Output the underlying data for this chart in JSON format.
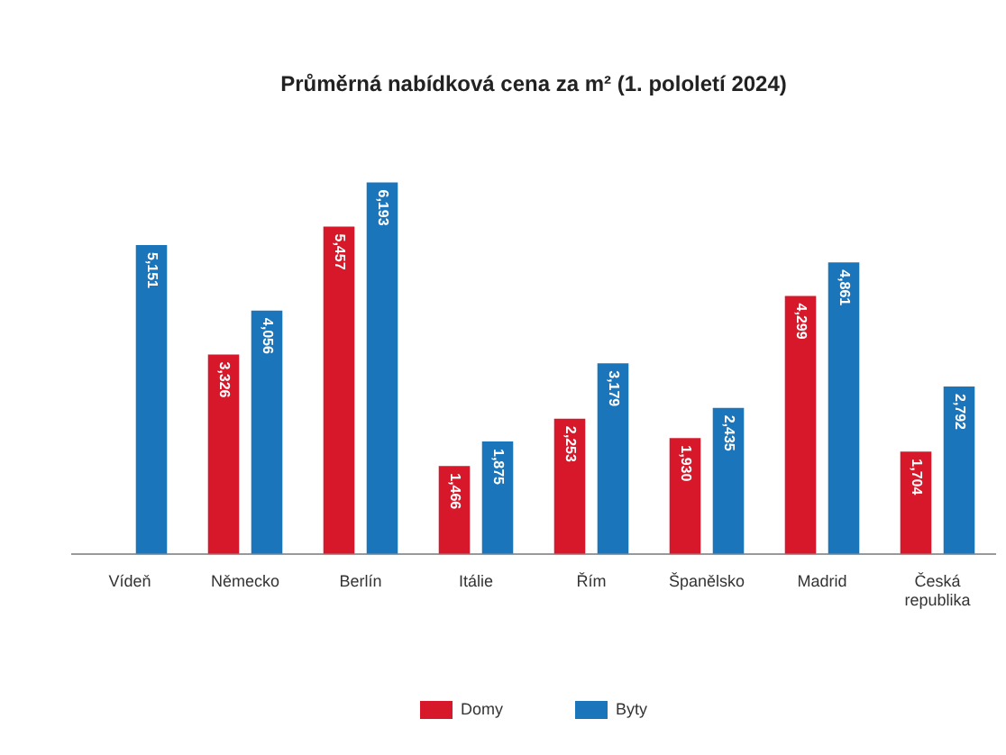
{
  "chart_data": {
    "type": "bar",
    "title": "Průměrná nabídková cena za m² (1. pololetí 2024)",
    "categories": [
      "Vídeň",
      "Německo",
      "Berlín",
      "Itálie",
      "Řím",
      "Španělsko",
      "Madrid",
      "Česká republika"
    ],
    "series": [
      {
        "name": "Domy",
        "color": "#d7182a",
        "values": [
          null,
          3326,
          5457,
          1466,
          2253,
          1930,
          4299,
          1704
        ],
        "value_labels": [
          null,
          "3,326",
          "5,457",
          "1,466",
          "2,253",
          "1,930",
          "4,299",
          "1,704"
        ]
      },
      {
        "name": "Byty",
        "color": "#1a75bb",
        "values": [
          5151,
          4056,
          6193,
          1875,
          3179,
          2435,
          4861,
          2792
        ],
        "value_labels": [
          "5,151",
          "4,056",
          "6,193",
          "1,875",
          "3,179",
          "2,435",
          "4,861",
          "2,792"
        ]
      }
    ],
    "tick_labels": "x",
    "grid": false,
    "legend": "bottom"
  }
}
